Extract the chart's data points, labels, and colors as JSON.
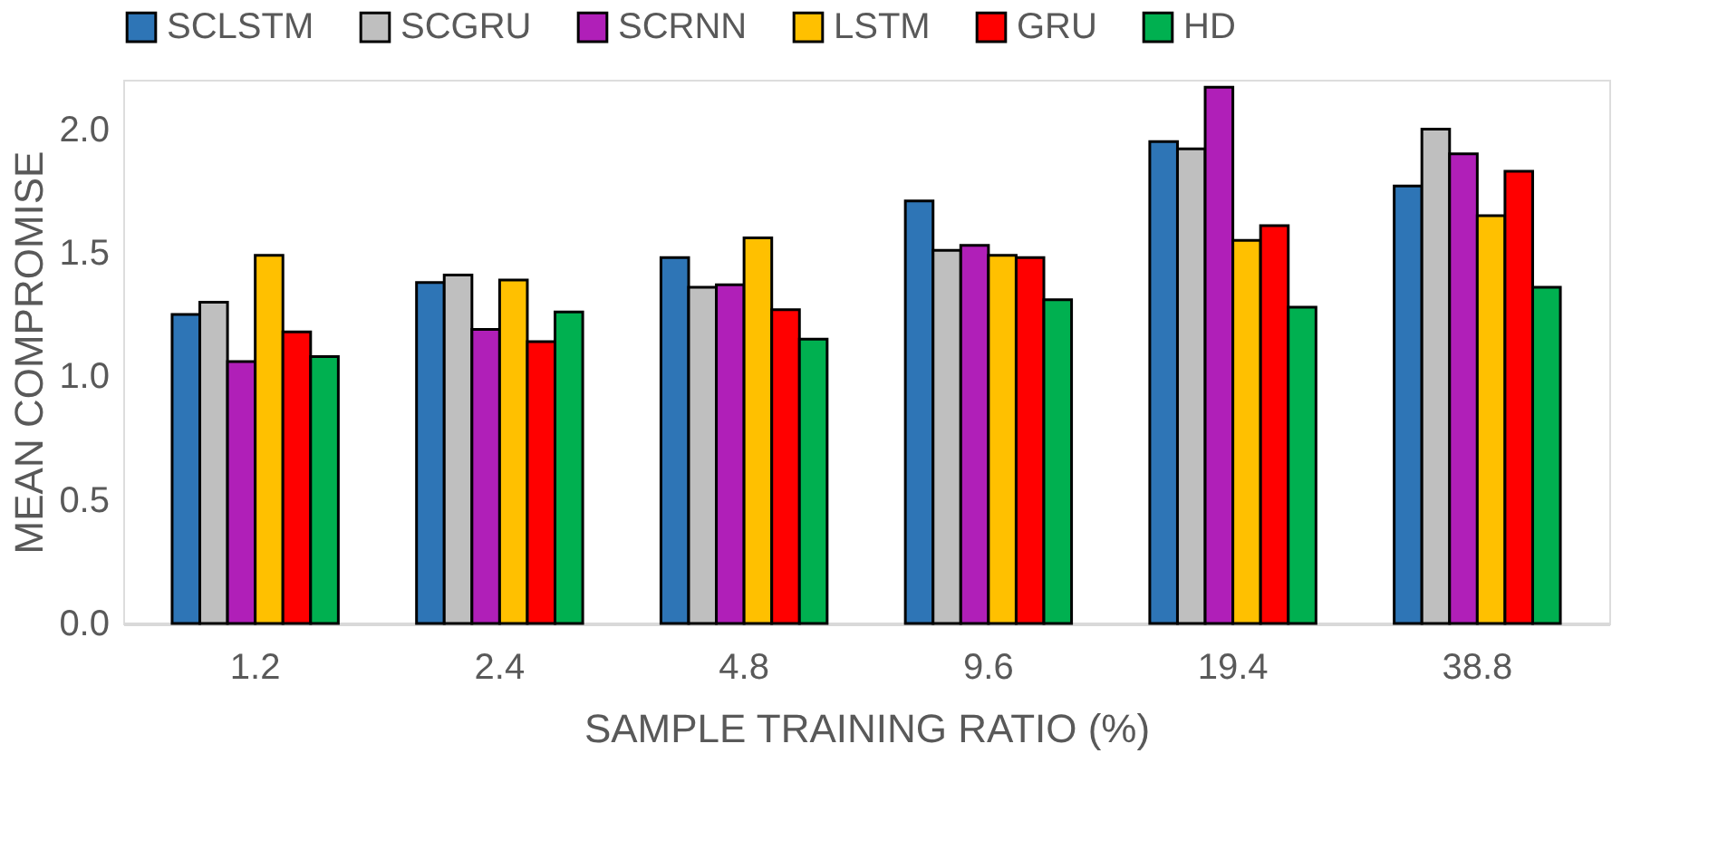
{
  "chart_data": {
    "type": "bar",
    "xlabel": "SAMPLE TRAINING RATIO (%)",
    "ylabel": "MEAN COMPROMISE",
    "categories": [
      "1.2",
      "2.4",
      "4.8",
      "9.6",
      "19.4",
      "38.8"
    ],
    "series": [
      {
        "name": "SCLSTM",
        "color": "#2e75b6",
        "values": [
          1.25,
          1.38,
          1.48,
          1.71,
          1.95,
          1.77
        ]
      },
      {
        "name": "SCGRU",
        "color": "#bfbfbf",
        "values": [
          1.3,
          1.41,
          1.36,
          1.51,
          1.92,
          2.0
        ]
      },
      {
        "name": "SCRNN",
        "color": "#b01fb8",
        "values": [
          1.06,
          1.19,
          1.37,
          1.53,
          2.17,
          1.9
        ]
      },
      {
        "name": "LSTM",
        "color": "#ffc000",
        "values": [
          1.49,
          1.39,
          1.56,
          1.49,
          1.55,
          1.65
        ]
      },
      {
        "name": "GRU",
        "color": "#ff0000",
        "values": [
          1.18,
          1.14,
          1.27,
          1.48,
          1.61,
          1.83
        ]
      },
      {
        "name": "HD",
        "color": "#00b050",
        "values": [
          1.08,
          1.26,
          1.15,
          1.31,
          1.28,
          1.36
        ]
      }
    ],
    "ylim": [
      0,
      2.2
    ],
    "yticks": [
      {
        "value": 0,
        "label": "0.0"
      },
      {
        "value": 0.5,
        "label": "0.5"
      },
      {
        "value": 1,
        "label": "1.0"
      },
      {
        "value": 1.5,
        "label": "1.5"
      },
      {
        "value": 2,
        "label": "2.0"
      }
    ],
    "grid": false,
    "legend": "top"
  }
}
